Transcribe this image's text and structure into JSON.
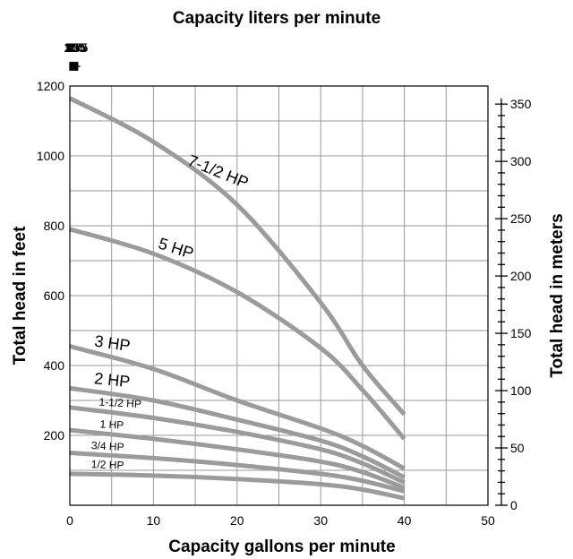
{
  "chart_data": {
    "type": "line",
    "title": "Capacity liters per minute",
    "xlabel": "Capacity gallons per minute",
    "ylabel": "Total head in feet",
    "ylabel_right": "Total head in meters",
    "xlim": [
      0,
      50
    ],
    "ylim": [
      0,
      1200
    ],
    "x_ticks": [
      "0",
      "10",
      "20",
      "30",
      "40",
      "50"
    ],
    "y_ticks": [
      "200",
      "400",
      "600",
      "800",
      "1000",
      "1200"
    ],
    "top_ticks": [
      "0",
      "25",
      "50",
      "75",
      "100",
      "125",
      "150",
      "175"
    ],
    "right_ticks": [
      "0",
      "50",
      "100",
      "150",
      "200",
      "250",
      "300",
      "350"
    ],
    "grid": true,
    "series": [
      {
        "name": "7-1/2 HP",
        "x": [
          0,
          10,
          20,
          30,
          35,
          40
        ],
        "y": [
          1165,
          1040,
          860,
          580,
          400,
          260
        ]
      },
      {
        "name": "5 HP",
        "x": [
          0,
          10,
          20,
          30,
          35,
          40
        ],
        "y": [
          790,
          720,
          610,
          450,
          330,
          190
        ]
      },
      {
        "name": "3 HP",
        "x": [
          0,
          10,
          20,
          30,
          35,
          40
        ],
        "y": [
          455,
          390,
          300,
          220,
          170,
          105
        ]
      },
      {
        "name": "2 HP",
        "x": [
          0,
          10,
          20,
          30,
          35,
          40
        ],
        "y": [
          335,
          300,
          245,
          185,
          140,
          80
        ]
      },
      {
        "name": "1-1/2 HP",
        "x": [
          0,
          10,
          20,
          30,
          35,
          40
        ],
        "y": [
          280,
          250,
          210,
          160,
          120,
          65
        ]
      },
      {
        "name": "1 HP",
        "x": [
          0,
          10,
          20,
          30,
          35,
          40
        ],
        "y": [
          215,
          190,
          160,
          125,
          95,
          50
        ]
      },
      {
        "name": "3/4 HP",
        "x": [
          0,
          10,
          20,
          30,
          35,
          40
        ],
        "y": [
          150,
          135,
          115,
          90,
          70,
          40
        ]
      },
      {
        "name": "1/2 HP",
        "x": [
          0,
          10,
          20,
          30,
          35,
          40
        ],
        "y": [
          90,
          85,
          75,
          60,
          45,
          20
        ]
      }
    ],
    "colors": {
      "curve": "#9b9b9b",
      "grid": "#9a9a9a",
      "text": "#000000"
    }
  }
}
